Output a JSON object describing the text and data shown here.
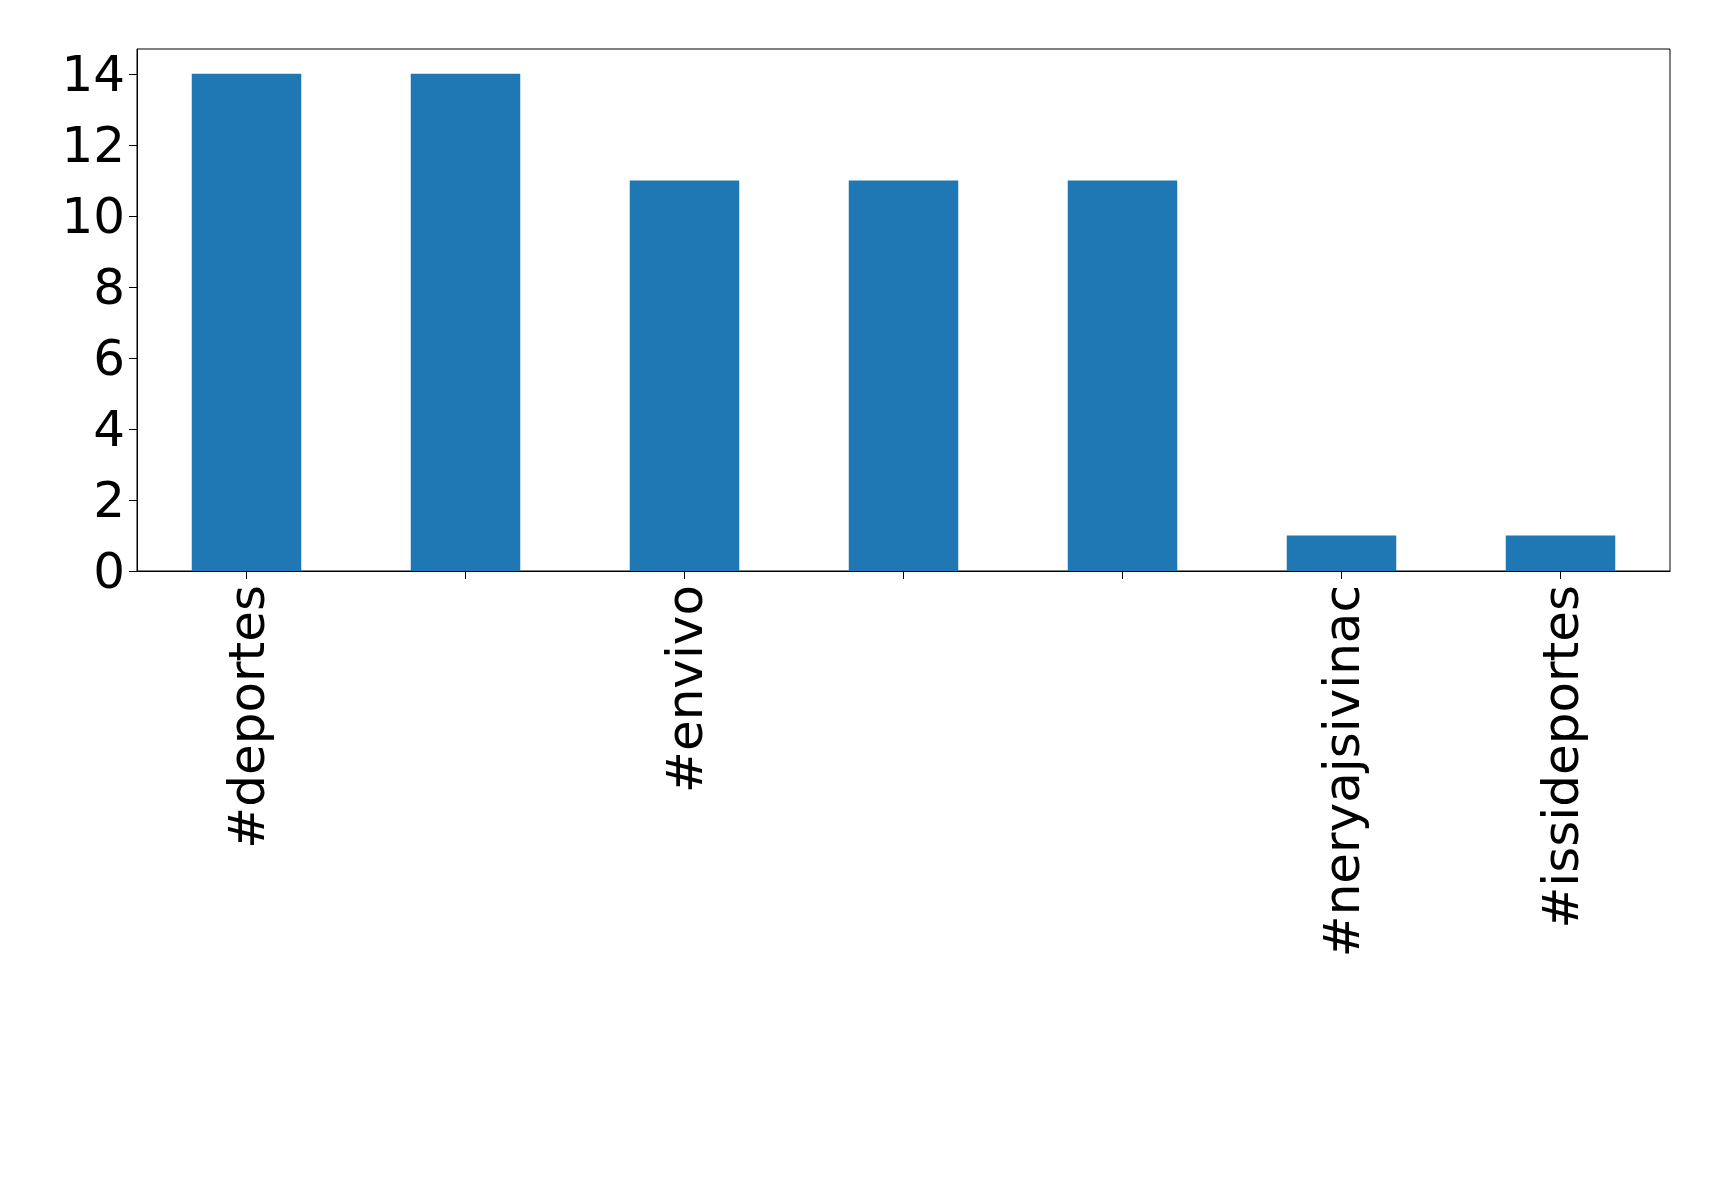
{
  "chart_data": {
    "type": "bar",
    "categories": [
      "#deportes",
      null,
      "#envivo",
      null,
      null,
      "#neryajsivinac",
      "#issideportes"
    ],
    "values": [
      14,
      14,
      11,
      11,
      11,
      1,
      1
    ],
    "color": "#1f77b4",
    "ylim": [
      0,
      14.7
    ],
    "yticks": [
      0,
      2,
      4,
      6,
      8,
      10,
      12,
      14
    ],
    "grid": false
  }
}
